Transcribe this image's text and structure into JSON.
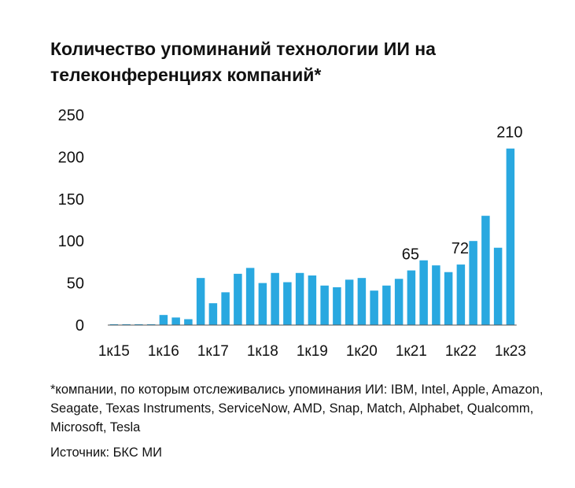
{
  "title": "Количество упоминаний технологии ИИ на телеконференциях компаний*",
  "footnote": "*компании, по которым отслеживались упоминания ИИ: IBM, Intel, Apple, Amazon, Seagate, Texas Instruments, ServiceNow, AMD, Snap, Match, Alphabet, Qualcomm, Microsoft, Tesla",
  "source": "Источник: БКС МИ",
  "chart_data": {
    "type": "bar",
    "title": "Количество упоминаний технологии ИИ на телеконференциях компаний*",
    "xlabel": "",
    "ylabel": "",
    "ylim": [
      0,
      250
    ],
    "yticks": [
      0,
      50,
      100,
      150,
      200,
      250
    ],
    "grid": false,
    "color": "#29a8e0",
    "x_tick_labels": [
      "1к15",
      "1к16",
      "1к17",
      "1к18",
      "1к19",
      "1к20",
      "1к21",
      "1к22",
      "1к23"
    ],
    "x_tick_every": 4,
    "categories": [
      "1к15",
      "2к15",
      "3к15",
      "4к15",
      "1к16",
      "2к16",
      "3к16",
      "4к16",
      "1к17",
      "2к17",
      "3к17",
      "4к17",
      "1к18",
      "2к18",
      "3к18",
      "4к18",
      "1к19",
      "2к19",
      "3к19",
      "4к19",
      "1к20",
      "2к20",
      "3к20",
      "4к20",
      "1к21",
      "2к21",
      "3к21",
      "4к21",
      "1к22",
      "2к22",
      "3к22",
      "4к22",
      "1к23"
    ],
    "values": [
      1,
      1,
      1,
      1,
      12,
      9,
      7,
      56,
      26,
      39,
      61,
      68,
      50,
      62,
      51,
      62,
      59,
      47,
      45,
      54,
      56,
      41,
      47,
      55,
      65,
      77,
      71,
      63,
      72,
      100,
      130,
      92,
      210
    ],
    "data_labels": [
      {
        "category": "1к21",
        "text": "65"
      },
      {
        "category": "1к22",
        "text": "72"
      },
      {
        "category": "1к23",
        "text": "210"
      }
    ]
  }
}
